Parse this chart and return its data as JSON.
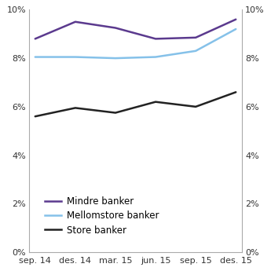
{
  "x_labels": [
    "sep. 14",
    "des. 14",
    "mar. 15",
    "jun. 15",
    "sep. 15",
    "des. 15"
  ],
  "mindre_banker": [
    8.8,
    9.5,
    9.25,
    8.8,
    8.85,
    9.6
  ],
  "mellomstore_banker": [
    8.05,
    8.05,
    8.0,
    8.05,
    8.3,
    9.2
  ],
  "store_banker": [
    5.6,
    5.95,
    5.75,
    6.2,
    6.0,
    6.6
  ],
  "mindre_color": "#5b3a8e",
  "mellomstore_color": "#85c1e9",
  "store_color": "#222222",
  "ylim": [
    0,
    10
  ],
  "yticks": [
    0,
    2,
    4,
    6,
    8,
    10
  ],
  "legend_labels": [
    "Mindre banker",
    "Mellomstore banker",
    "Store banker"
  ],
  "line_width": 1.8,
  "bg_color": "#ffffff",
  "tick_color": "#888888",
  "spine_color": "#aaaaaa",
  "tick_fontsize": 8.0,
  "legend_fontsize": 8.5
}
